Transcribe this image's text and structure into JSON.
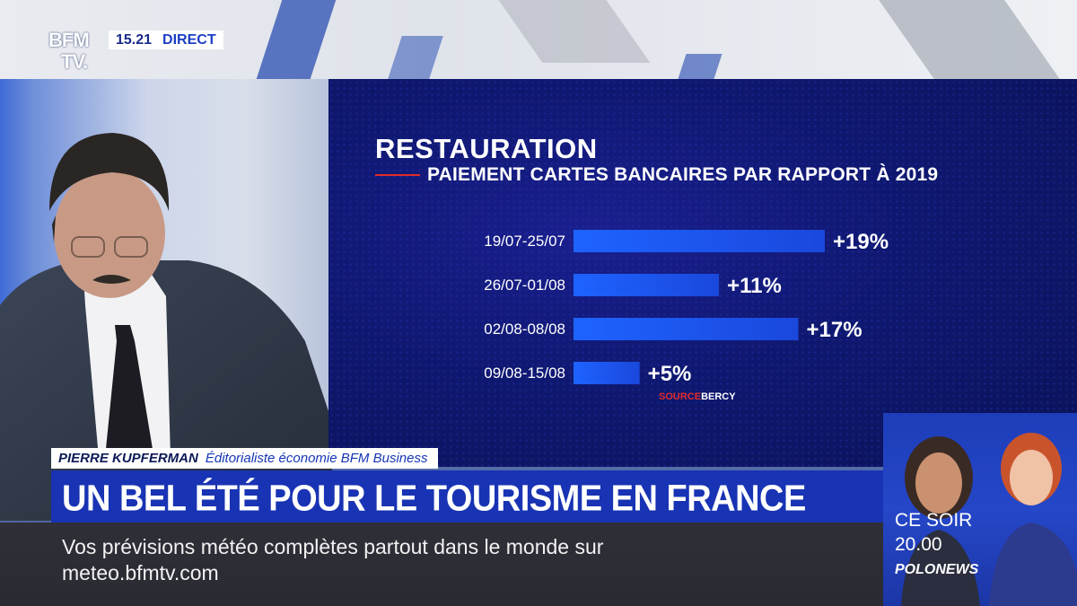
{
  "channel": {
    "logo_line1": "BFM",
    "logo_line2": "TV.",
    "time": "15.21",
    "live_label": "DIRECT"
  },
  "graphic": {
    "title": "RESTAURATION",
    "subtitle": "PAIEMENT CARTES BANCAIRES PAR RAPPORT À 2019",
    "source_label": "SOURCE",
    "source_value": "BERCY"
  },
  "chart_data": {
    "type": "bar",
    "orientation": "horizontal",
    "title": "RESTAURATION",
    "subtitle": "PAIEMENT CARTES BANCAIRES PAR RAPPORT À 2019",
    "categories": [
      "19/07-25/07",
      "26/07-01/08",
      "02/08-08/08",
      "09/08-15/08"
    ],
    "values": [
      19,
      11,
      17,
      5
    ],
    "value_labels": [
      "+19%",
      "+11%",
      "+17%",
      "+5%"
    ],
    "unit": "%",
    "xlim": [
      0,
      19
    ],
    "grid": false,
    "colors": {
      "bar_start": "#1f5af2",
      "bar_end": "#1a4ee0",
      "text": "#ffffff"
    }
  },
  "lower_third": {
    "name": "PIERRE KUPFERMAN",
    "role": "Éditorialiste économie BFM Business",
    "headline": "UN BEL ÉTÉ POUR LE TOURISME EN FRANCE"
  },
  "ticker": {
    "line1": "Vos prévisions météo complètes partout dans le monde sur",
    "line2": "meteo.bfmtv.com"
  },
  "promo": {
    "line1": "CE SOIR",
    "line2": "20.00",
    "brand": "POLONEWS"
  },
  "colors": {
    "brand_blue": "#1833b3",
    "accent_red": "#e22b2b",
    "ticker_bg": "#2d2d36"
  }
}
